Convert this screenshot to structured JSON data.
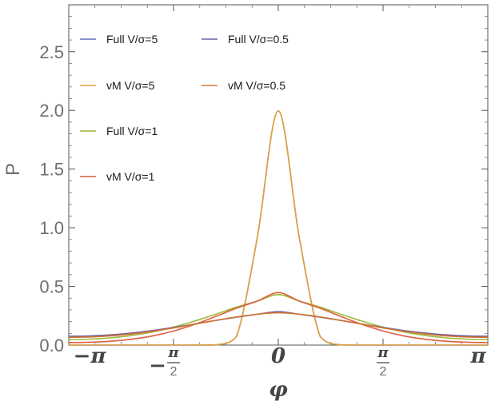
{
  "chart_data": {
    "type": "line",
    "title": "",
    "xlabel": "φ",
    "ylabel": "P",
    "xlim": [
      -3.14159,
      3.14159
    ],
    "ylim": [
      0,
      2.9
    ],
    "grid": false,
    "legend_position": "top-left",
    "yticks": [
      {
        "value": 0.0,
        "label": "0.0"
      },
      {
        "value": 0.5,
        "label": "0.5"
      },
      {
        "value": 1.0,
        "label": "1.0"
      },
      {
        "value": 1.5,
        "label": "1.5"
      },
      {
        "value": 2.0,
        "label": "2.0"
      },
      {
        "value": 2.5,
        "label": "2.5"
      }
    ],
    "xticks": [
      {
        "value": -3.14159,
        "label": "−π",
        "sign": "−",
        "num": "π",
        "den": ""
      },
      {
        "value": -1.5708,
        "label": "−π/2",
        "sign": "−",
        "num": "π",
        "den": "2"
      },
      {
        "value": 0,
        "label": "0",
        "sign": "",
        "num": "0",
        "den": ""
      },
      {
        "value": 1.5708,
        "label": "π/2",
        "sign": "",
        "num": "π",
        "den": "2"
      },
      {
        "value": 3.14159,
        "label": "π",
        "sign": "",
        "num": "π",
        "den": ""
      }
    ],
    "x": [
      -3.1416,
      -2.8274,
      -2.5133,
      -2.1991,
      -1.885,
      -1.5708,
      -1.2566,
      -0.9425,
      -0.6283,
      -0.3142,
      0,
      0.3142,
      0.6283,
      0.9425,
      1.2566,
      1.5708,
      1.885,
      2.1991,
      2.5133,
      2.8274,
      3.1416
    ],
    "series": [
      {
        "name": "Full V/σ=5",
        "color": "#5e6fb3",
        "values": [
          0.0,
          0.0,
          0.0,
          0.0,
          0.0,
          0.0,
          0.0,
          0.001,
          0.073,
          0.918,
          1.995,
          0.918,
          0.073,
          0.001,
          0.0,
          0.0,
          0.0,
          0.0,
          0.0,
          0.0,
          0.0
        ]
      },
      {
        "name": "vM V/σ=5",
        "color": "#e3a23c",
        "values": [
          0.0,
          0.0,
          0.0,
          0.0,
          0.0,
          0.0,
          0.0,
          0.001,
          0.073,
          0.918,
          1.995,
          0.918,
          0.073,
          0.001,
          0.0,
          0.0,
          0.0,
          0.0,
          0.0,
          0.0,
          0.0
        ]
      },
      {
        "name": "Full V/σ=1",
        "color": "#9db83a",
        "values": [
          0.047,
          0.051,
          0.062,
          0.082,
          0.112,
          0.153,
          0.204,
          0.262,
          0.323,
          0.375,
          0.43,
          0.375,
          0.323,
          0.262,
          0.204,
          0.153,
          0.112,
          0.082,
          0.062,
          0.051,
          0.047
        ]
      },
      {
        "name": "vM V/σ=1",
        "color": "#df5d3c",
        "values": [
          0.021,
          0.024,
          0.033,
          0.05,
          0.078,
          0.12,
          0.176,
          0.243,
          0.314,
          0.375,
          0.447,
          0.375,
          0.314,
          0.243,
          0.176,
          0.12,
          0.078,
          0.05,
          0.033,
          0.024,
          0.021
        ]
      },
      {
        "name": "Full V/σ=0.5",
        "color": "#6b62a6",
        "values": [
          0.075,
          0.078,
          0.087,
          0.103,
          0.124,
          0.15,
          0.179,
          0.21,
          0.238,
          0.263,
          0.285,
          0.263,
          0.238,
          0.21,
          0.179,
          0.15,
          0.124,
          0.103,
          0.087,
          0.078,
          0.075
        ]
      },
      {
        "name": "vM V/σ=0.5",
        "color": "#d4742e",
        "values": [
          0.066,
          0.069,
          0.079,
          0.095,
          0.118,
          0.146,
          0.178,
          0.21,
          0.24,
          0.263,
          0.275,
          0.263,
          0.24,
          0.21,
          0.178,
          0.146,
          0.118,
          0.095,
          0.079,
          0.069,
          0.066
        ]
      }
    ]
  }
}
